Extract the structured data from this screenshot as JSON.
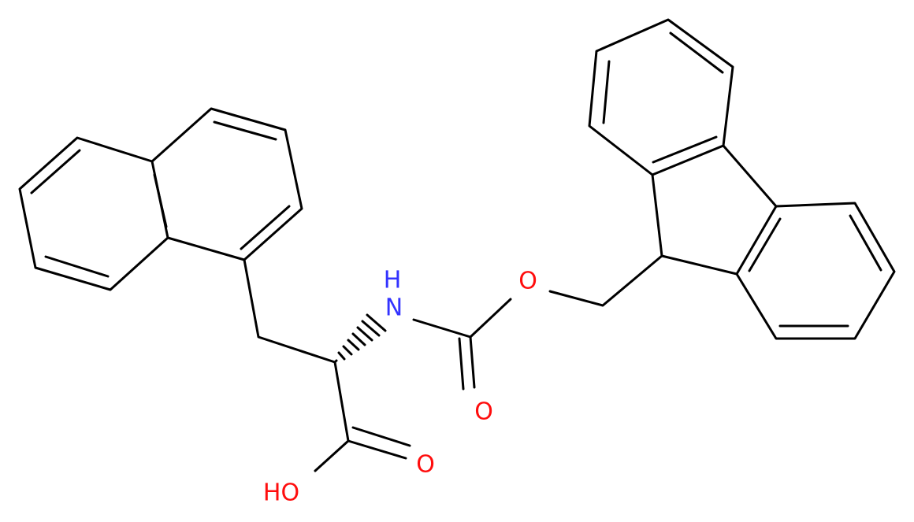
{
  "atoms": [
    {
      "label": "H"
    },
    {
      "label": "N"
    },
    {
      "label": "O"
    },
    {
      "label": "O"
    },
    {
      "label": "O"
    },
    {
      "label": "HO"
    }
  ]
}
